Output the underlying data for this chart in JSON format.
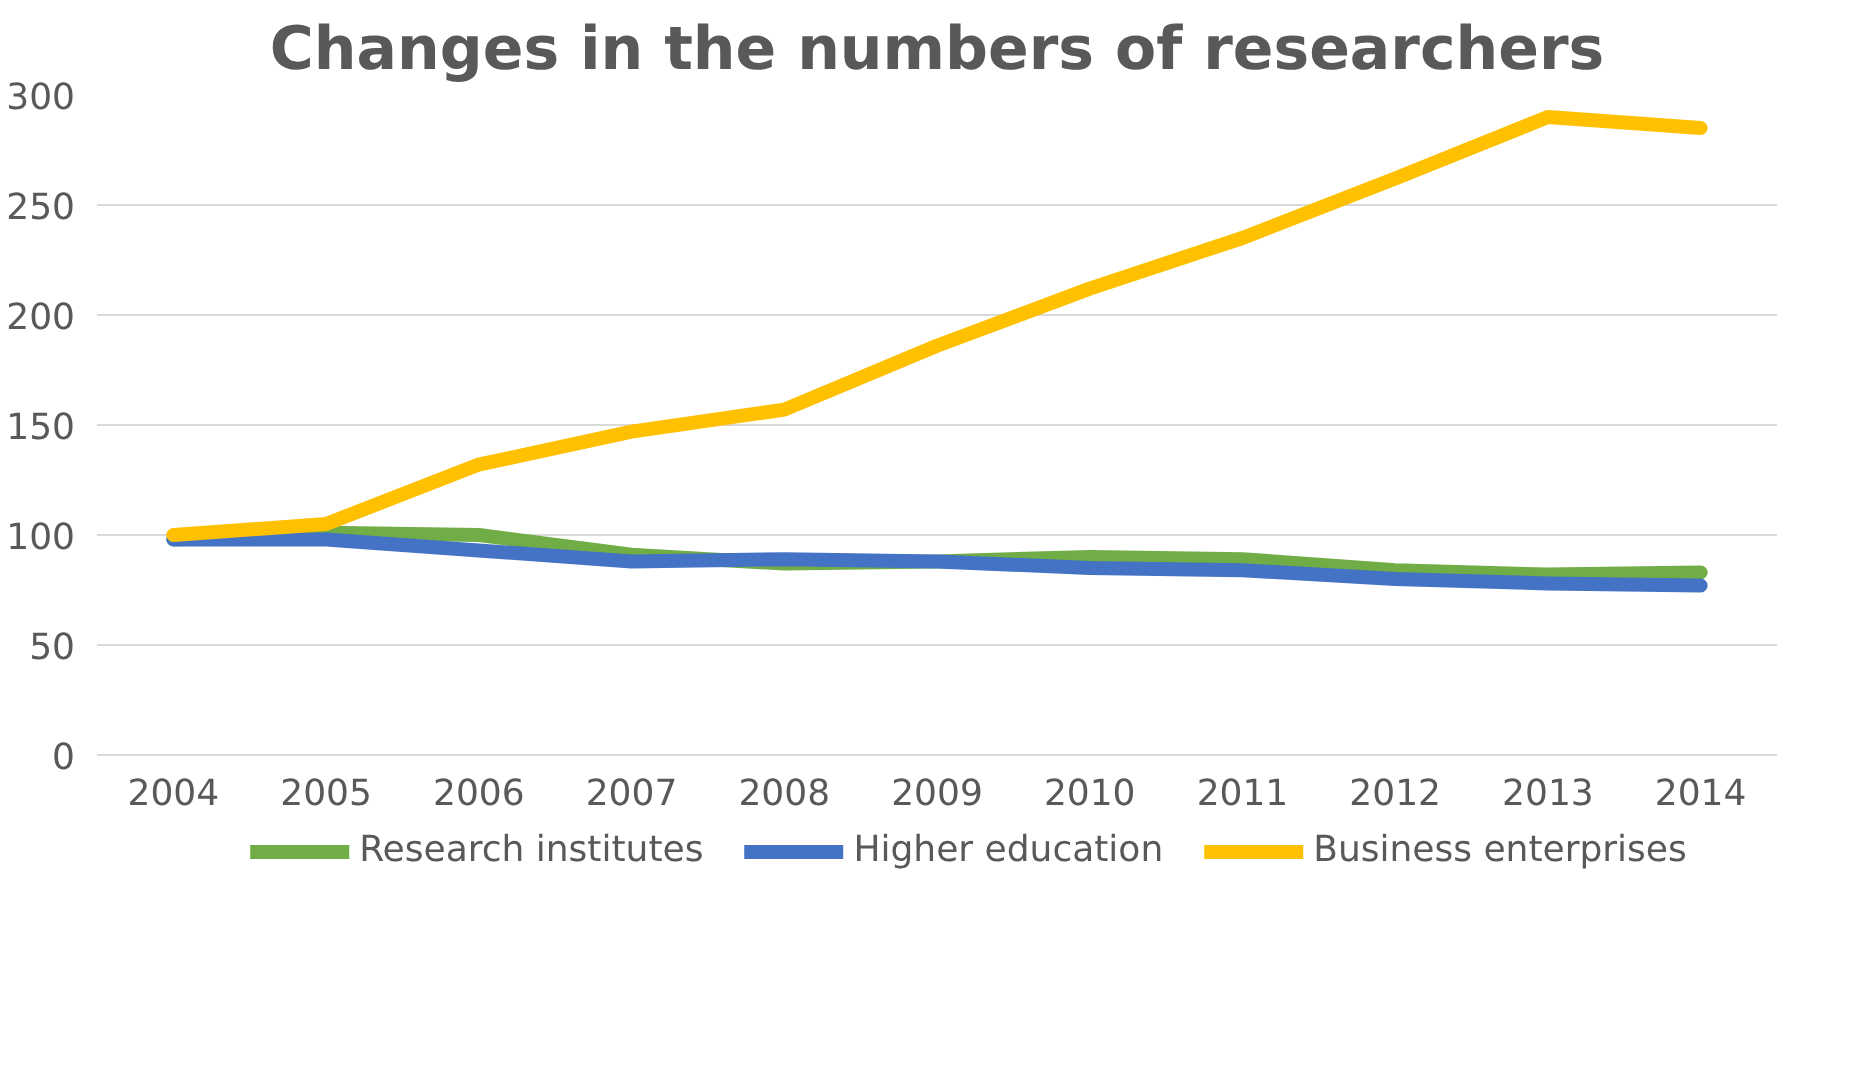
{
  "chart_data": {
    "type": "line",
    "title": "Changes in the numbers of researchers",
    "categories": [
      "2004",
      "2005",
      "2006",
      "2007",
      "2008",
      "2009",
      "2010",
      "2011",
      "2012",
      "2013",
      "2014"
    ],
    "series": [
      {
        "name": "Research institutes",
        "color": "#70ad47",
        "values": [
          98,
          101,
          100,
          91,
          87,
          88,
          90,
          89,
          84,
          82,
          83
        ]
      },
      {
        "name": "Higher education",
        "color": "#4472c4",
        "values": [
          98,
          98,
          93,
          88,
          89,
          88,
          85,
          84,
          80,
          78,
          77
        ]
      },
      {
        "name": "Business enterprises",
        "color": "#ffc000",
        "values": [
          100,
          105,
          132,
          147,
          157,
          186,
          212,
          235,
          262,
          290,
          285
        ]
      }
    ],
    "ylim": [
      0,
      300
    ],
    "yticks": [
      0,
      50,
      100,
      150,
      200,
      250,
      300
    ],
    "grid": "y",
    "legend": "bottom",
    "marker": "none",
    "line_style": "solid"
  }
}
